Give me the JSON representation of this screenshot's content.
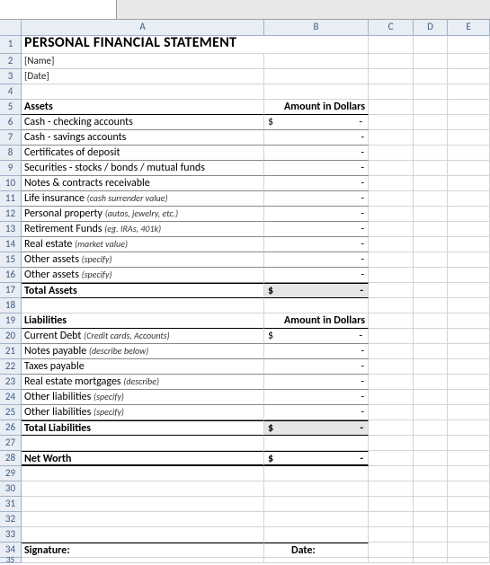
{
  "columns": [
    "A",
    "B",
    "C",
    "D",
    "E"
  ],
  "title": "PERSONAL FINANCIAL STATEMENT",
  "name_placeholder": "[Name]",
  "date_placeholder": "[Date]",
  "assets": {
    "header": "Assets",
    "amount_header": "Amount in Dollars",
    "rows": [
      {
        "label": "Cash - checking accounts",
        "note": "",
        "dollar": true
      },
      {
        "label": "Cash - savings accounts",
        "note": ""
      },
      {
        "label": "Certificates of deposit",
        "note": ""
      },
      {
        "label": "Securities - stocks / bonds / mutual funds",
        "note": ""
      },
      {
        "label": "Notes & contracts receivable",
        "note": ""
      },
      {
        "label": "Life insurance ",
        "note": "(cash surrender value)"
      },
      {
        "label": "Personal property ",
        "note": "(autos, jewelry, etc.)"
      },
      {
        "label": "Retirement Funds ",
        "note": "(eg. IRAs, 401k)"
      },
      {
        "label": "Real estate ",
        "note": "(market value)"
      },
      {
        "label": "Other assets ",
        "note": "(specify)"
      },
      {
        "label": "Other assets ",
        "note": "(specify)"
      }
    ],
    "total_label": "Total Assets"
  },
  "liabilities": {
    "header": "Liabilities",
    "amount_header": "Amount in Dollars",
    "rows": [
      {
        "label": "Current Debt ",
        "note": "(Credit cards, Accounts)",
        "dollar": true
      },
      {
        "label": "Notes payable ",
        "note": "(describe below)"
      },
      {
        "label": "Taxes payable",
        "note": ""
      },
      {
        "label": "Real estate mortgages ",
        "note": "(describe)"
      },
      {
        "label": "Other liabilities ",
        "note": "(specify)"
      },
      {
        "label": "Other liabilities ",
        "note": "(specify)"
      }
    ],
    "total_label": "Total Liabilities"
  },
  "net_worth_label": "Net Worth",
  "signature_label": "Signature:",
  "date_label": "Date:",
  "dash": "-",
  "dollar_sign": "$"
}
